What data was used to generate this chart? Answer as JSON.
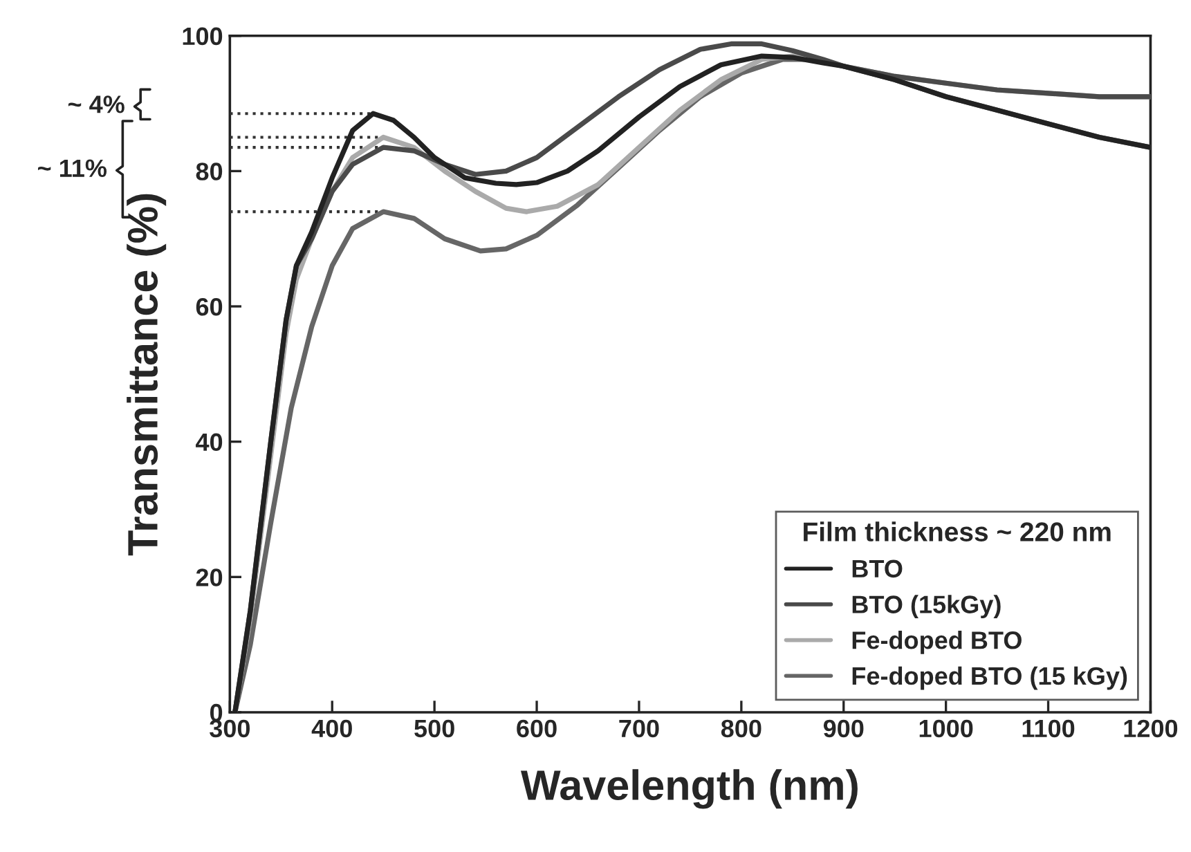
{
  "chart_data": {
    "type": "line",
    "xlabel": "Wavelength (nm)",
    "ylabel": "Transmittance (%)",
    "legend_title": "Film thickness ~ 220 nm",
    "legend": "bottom right",
    "grid": false,
    "xlim": [
      300,
      1200
    ],
    "xticks": [
      300,
      400,
      500,
      600,
      700,
      800,
      900,
      1000,
      1100,
      1200
    ],
    "ylim": [
      0,
      100
    ],
    "yticks": [
      0,
      20,
      40,
      60,
      80,
      100
    ],
    "annotations": [
      "~ 4%",
      "~ 11%"
    ],
    "series": [
      {
        "name": "BTO",
        "color": "#222222",
        "line_style": "solid",
        "x": [
          305,
          320,
          340,
          355,
          365,
          380,
          400,
          420,
          440,
          460,
          480,
          500,
          530,
          560,
          580,
          600,
          630,
          660,
          700,
          740,
          780,
          820,
          850,
          880,
          900,
          950,
          1000,
          1050,
          1100,
          1150,
          1200
        ],
        "values": [
          0,
          15,
          40,
          58,
          66,
          71,
          79,
          86,
          88.5,
          87.5,
          85,
          82,
          79,
          78.2,
          78,
          78.3,
          80,
          83,
          88,
          92.5,
          95.7,
          97,
          96.8,
          96,
          95.5,
          93.5,
          91,
          89,
          87,
          85,
          83.5
        ]
      },
      {
        "name": "BTO (15kGy)",
        "color": "#4a4a4a",
        "line_style": "solid",
        "x": [
          305,
          320,
          340,
          355,
          365,
          380,
          400,
          420,
          450,
          480,
          510,
          540,
          570,
          600,
          640,
          680,
          720,
          760,
          790,
          820,
          850,
          880,
          900,
          950,
          1000,
          1050,
          1100,
          1150,
          1200
        ],
        "values": [
          0,
          15,
          40,
          58,
          66,
          70,
          77,
          81,
          83.5,
          83,
          81,
          79.5,
          80,
          82,
          86.5,
          91,
          95,
          98,
          98.8,
          98.8,
          97.8,
          96.5,
          95.5,
          94,
          93,
          92,
          91.5,
          91,
          91
        ]
      },
      {
        "name": "Fe-doped BTO",
        "color": "#aaaaaa",
        "line_style": "solid",
        "x": [
          305,
          320,
          340,
          355,
          365,
          380,
          400,
          420,
          450,
          480,
          510,
          540,
          570,
          590,
          620,
          660,
          700,
          740,
          780,
          820,
          850,
          880,
          900,
          950,
          1000,
          1050,
          1100,
          1150,
          1200
        ],
        "values": [
          0,
          14,
          38,
          56,
          64,
          70,
          77,
          82,
          85,
          83.5,
          80,
          77,
          74.5,
          74,
          74.8,
          78,
          83.5,
          89,
          93.5,
          96.5,
          97,
          96.3,
          95.5,
          94,
          93,
          92,
          91.5,
          91,
          91
        ]
      },
      {
        "name": "Fe-doped BTO (15 kGy)",
        "color": "#666666",
        "line_style": "solid",
        "x": [
          305,
          320,
          340,
          360,
          380,
          400,
          420,
          450,
          480,
          510,
          545,
          570,
          600,
          640,
          680,
          720,
          760,
          800,
          840,
          870,
          900,
          950,
          1000,
          1050,
          1100,
          1150,
          1200
        ],
        "values": [
          0,
          10,
          28,
          45,
          57,
          66,
          71.5,
          74,
          73,
          70,
          68.2,
          68.5,
          70.5,
          75,
          80.5,
          86,
          91,
          94.5,
          96.5,
          96.5,
          95.5,
          93.5,
          91,
          89,
          87,
          85,
          83.5
        ]
      },
      {
        "color": "#333333",
        "line_style": "dotted",
        "x": [
          300,
          440
        ],
        "values": [
          88.5,
          88.5
        ]
      },
      {
        "color": "#333333",
        "line_style": "dotted",
        "x": [
          300,
          450
        ],
        "values": [
          85,
          85
        ]
      },
      {
        "color": "#333333",
        "line_style": "dotted",
        "x": [
          300,
          450
        ],
        "values": [
          83.5,
          83.5
        ]
      },
      {
        "color": "#333333",
        "line_style": "dotted",
        "x": [
          300,
          450
        ],
        "values": [
          74,
          74
        ]
      }
    ]
  }
}
